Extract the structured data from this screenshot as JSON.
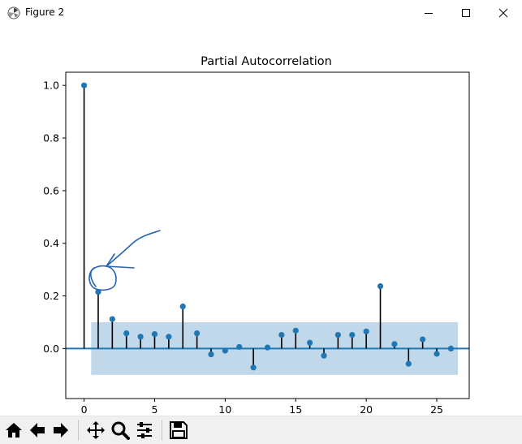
{
  "window": {
    "title": "Figure 2",
    "controls": [
      "minimize-icon",
      "maximize-icon",
      "close-icon"
    ]
  },
  "toolbar": {
    "buttons": [
      "home-icon",
      "back-icon",
      "forward-icon",
      "pan-icon",
      "zoom-icon",
      "configure-subplots-icon",
      "save-icon"
    ]
  },
  "colors": {
    "marker": "#1f77b4",
    "stem": "#000000",
    "confidence_band": "#c0d8ea",
    "annotation_ink": "#2a64b0"
  },
  "chart_data": {
    "type": "scatter",
    "title": "Partial Autocorrelation",
    "xlabel": "",
    "ylabel": "",
    "xlim": [
      -1.3,
      27.3
    ],
    "ylim": [
      -0.19,
      1.05
    ],
    "xticks": [
      0,
      5,
      10,
      15,
      20,
      25
    ],
    "yticks": [
      0.0,
      0.2,
      0.4,
      0.6,
      0.8,
      1.0
    ],
    "xtick_labels": [
      "0",
      "5",
      "10",
      "15",
      "20",
      "25"
    ],
    "ytick_labels": [
      "0.0",
      "0.2",
      "0.4",
      "0.6",
      "0.8",
      "1.0"
    ],
    "grid": false,
    "legend": "none",
    "confidence_band": {
      "x_start": 0.5,
      "x_end": 26.5,
      "lower": -0.1,
      "upper": 0.1
    },
    "lags": [
      0,
      1,
      2,
      3,
      4,
      5,
      6,
      7,
      8,
      9,
      10,
      11,
      12,
      13,
      14,
      15,
      16,
      17,
      18,
      19,
      20,
      21,
      22,
      23,
      24,
      25,
      26
    ],
    "values": [
      1.0,
      0.215,
      0.112,
      0.058,
      0.045,
      0.055,
      0.045,
      0.16,
      0.058,
      -0.022,
      -0.008,
      0.006,
      -0.072,
      0.004,
      0.052,
      0.068,
      0.022,
      -0.027,
      0.052,
      0.052,
      0.065,
      0.237,
      0.017,
      -0.058,
      0.035,
      -0.02,
      0.0
    ],
    "annotation": {
      "kind": "hand-drawn arrow and circle",
      "target_lag": 1
    }
  }
}
